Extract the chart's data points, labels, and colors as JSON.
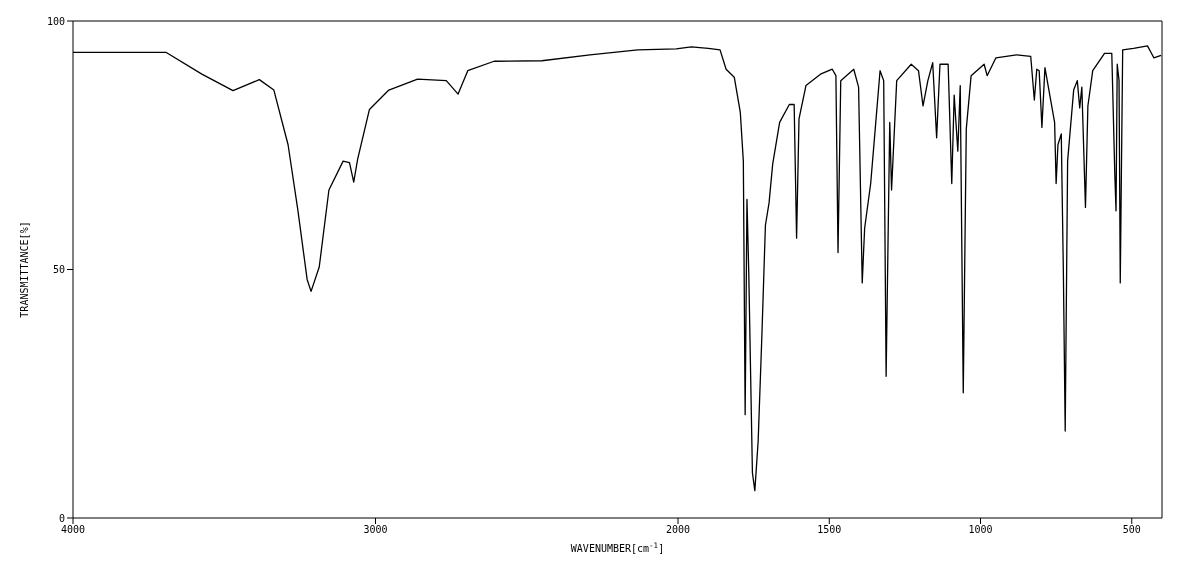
{
  "chart_data": {
    "type": "line",
    "xlabel": "WAVENUMBER[cm$^{-1}$]",
    "ylabel": "TRANSMITTANCE[%]",
    "xlim": [
      4000,
      400
    ],
    "xticks": [
      4000,
      3000,
      2000,
      1500,
      1000,
      500
    ],
    "ylim": [
      0,
      100
    ],
    "yticks": [
      0,
      50,
      100
    ],
    "grid": false,
    "marker": "none",
    "line_style": "solid",
    "x": [
      4000,
      3693,
      3574,
      3471,
      3384,
      3336,
      3289,
      3257,
      3226,
      3213,
      3186,
      3154,
      3107,
      3086,
      3072,
      3059,
      3020,
      2956,
      2861,
      2766,
      2727,
      2695,
      2608,
      2450,
      2291,
      2133,
      2006,
      1956,
      1900,
      1861,
      1841,
      1814,
      1794,
      1784,
      1778,
      1772,
      1766,
      1760,
      1754,
      1746,
      1735,
      1723,
      1711,
      1699,
      1687,
      1664,
      1632,
      1616,
      1608,
      1600,
      1577,
      1529,
      1490,
      1478,
      1471,
      1462,
      1419,
      1403,
      1391,
      1383,
      1363,
      1348,
      1332,
      1320,
      1312,
      1300,
      1294,
      1277,
      1229,
      1205,
      1190,
      1174,
      1158,
      1145,
      1134,
      1107,
      1095,
      1087,
      1075,
      1067,
      1057,
      1047,
      1031,
      988,
      978,
      949,
      881,
      834,
      822,
      814,
      806,
      797,
      787,
      755,
      750,
      744,
      733,
      726,
      720,
      712,
      692,
      680,
      672,
      665,
      653,
      645,
      629,
      590,
      566,
      556,
      552,
      548,
      542,
      538,
      530,
      494,
      448,
      427,
      403
    ],
    "series": [
      {
        "color": "#000000",
        "values": [
          93.7,
          93.7,
          89.3,
          86.0,
          88.2,
          86.1,
          75.1,
          62.1,
          48.0,
          45.6,
          50.5,
          66.0,
          71.8,
          71.5,
          67.6,
          72.2,
          82.2,
          86.1,
          88.3,
          88.0,
          85.3,
          90.0,
          91.9,
          92.0,
          93.2,
          94.2,
          94.4,
          94.8,
          94.5,
          94.2,
          90.3,
          88.7,
          81.6,
          71.8,
          20.8,
          64.1,
          49.2,
          29.1,
          9.1,
          5.5,
          15.5,
          36.2,
          58.9,
          63.4,
          71.2,
          79.6,
          83.2,
          83.2,
          56.3,
          80.3,
          87.0,
          89.3,
          90.3,
          89.0,
          53.4,
          88.0,
          90.3,
          86.7,
          47.3,
          58.3,
          67.3,
          78.3,
          90.0,
          88.0,
          28.5,
          79.6,
          66.0,
          88.0,
          91.3,
          90.0,
          82.9,
          88.0,
          91.6,
          76.5,
          91.3,
          91.3,
          67.3,
          85.1,
          73.8,
          87.0,
          25.2,
          78.3,
          89.0,
          91.3,
          89.0,
          92.6,
          93.2,
          92.9,
          84.1,
          90.3,
          90.0,
          78.6,
          90.6,
          79.6,
          67.3,
          75.1,
          77.3,
          49.2,
          17.5,
          71.8,
          86.1,
          88.0,
          82.5,
          86.7,
          62.5,
          82.9,
          90.0,
          93.5,
          93.5,
          69.2,
          61.8,
          91.3,
          88.0,
          47.3,
          94.2,
          94.5,
          95.0,
          92.6,
          93.1
        ]
      }
    ]
  }
}
